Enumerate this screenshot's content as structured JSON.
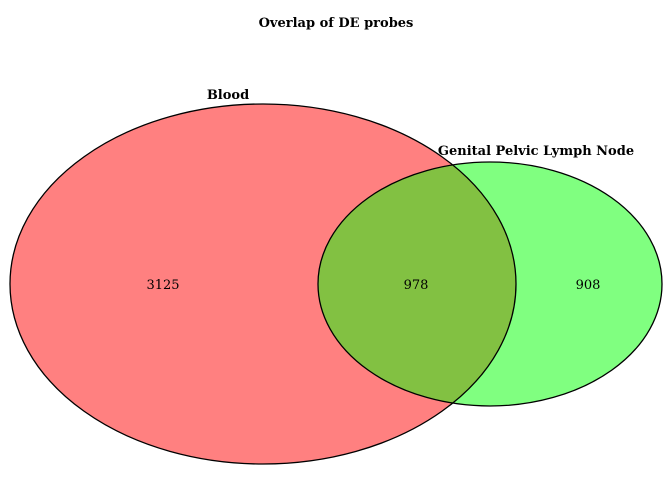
{
  "title": "Overlap of DE probes",
  "sets": [
    {
      "name": "Blood",
      "only_count": "3125",
      "color": "#ff8080"
    },
    {
      "name": "Genital Pelvic Lymph Node",
      "only_count": "908",
      "color": "#80ff80"
    }
  ],
  "intersection": {
    "count": "978",
    "color": "#82c142"
  },
  "outline_color": "#000000"
}
